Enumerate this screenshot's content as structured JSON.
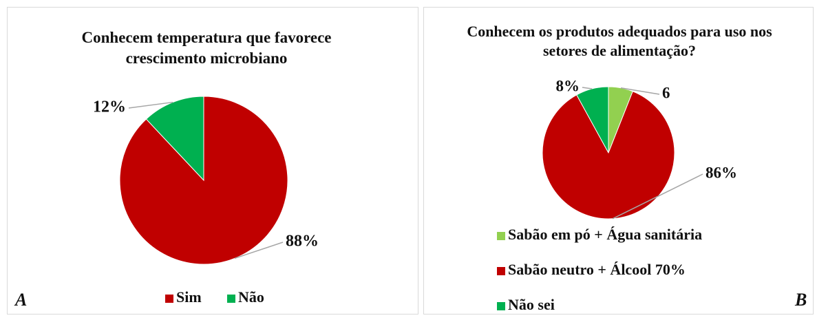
{
  "chart_data": [
    {
      "type": "pie",
      "title": "Conhecem temperatura que favorece crescimento microbiano",
      "categories": [
        "Sim",
        "Não"
      ],
      "values": [
        88,
        12
      ],
      "value_labels": [
        "88%",
        "12%"
      ],
      "colors": [
        "#c00000",
        "#00b050"
      ],
      "panel_label": "A"
    },
    {
      "type": "pie",
      "title": "Conhecem os produtos adequados para uso nos setores de alimentação?",
      "categories": [
        "Sabão em pó + Água sanitária",
        "Sabão neutro + Álcool 70%",
        "Não sei"
      ],
      "values": [
        6,
        86,
        8
      ],
      "value_labels": [
        "6",
        "86%",
        "8%"
      ],
      "colors": [
        "#92d050",
        "#c00000",
        "#00b050"
      ],
      "panel_label": "B"
    }
  ]
}
